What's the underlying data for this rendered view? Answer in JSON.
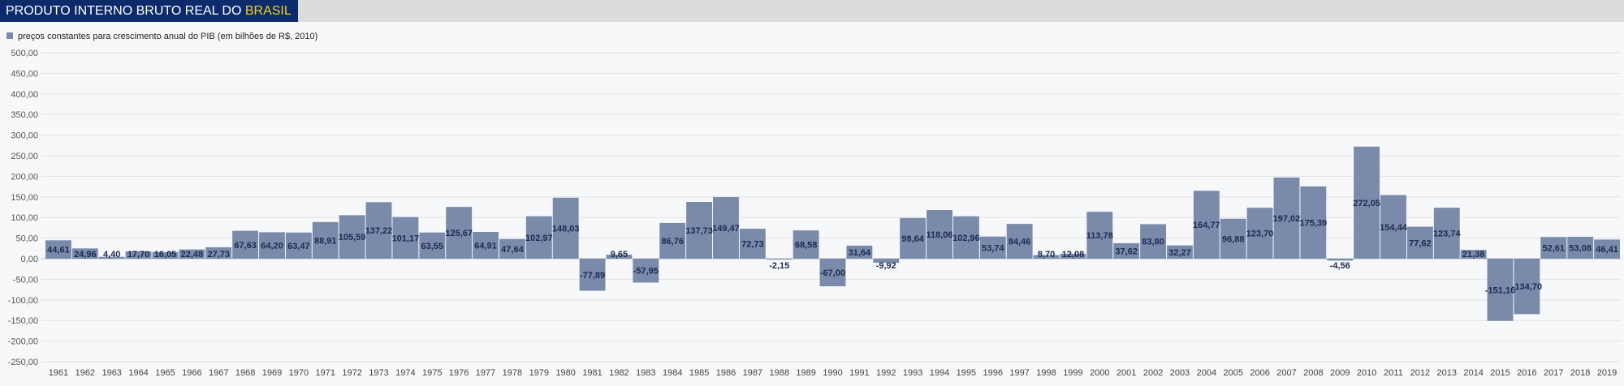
{
  "header": {
    "title_main": "PRODUTO INTERNO BRUTO REAL DO ",
    "title_highlight": "BRASIL"
  },
  "colors": {
    "header_bg": "#0d2b6b",
    "highlight": "#f2d21b",
    "bar": "#7a8aab"
  },
  "chart_data": {
    "type": "bar",
    "title": "PRODUTO INTERNO BRUTO REAL DO BRASIL",
    "legend_position": "top-left",
    "grid": true,
    "ylim": [
      -250,
      500
    ],
    "yticks": [
      "500,00",
      "450,00",
      "400,00",
      "350,00",
      "300,00",
      "250,00",
      "200,00",
      "150,00",
      "100,00",
      "50,00",
      "0,00",
      "-50,00",
      "-100,00",
      "-150,00",
      "-200,00",
      "-250,00"
    ],
    "categories": [
      "1961",
      "1962",
      "1963",
      "1964",
      "1965",
      "1966",
      "1967",
      "1968",
      "1969",
      "1970",
      "1971",
      "1972",
      "1973",
      "1974",
      "1975",
      "1976",
      "1977",
      "1978",
      "1979",
      "1980",
      "1981",
      "1982",
      "1983",
      "1984",
      "1985",
      "1986",
      "1987",
      "1988",
      "1989",
      "1990",
      "1991",
      "1992",
      "1993",
      "1994",
      "1995",
      "1996",
      "1997",
      "1998",
      "1999",
      "2000",
      "2001",
      "2002",
      "2003",
      "2004",
      "2005",
      "2006",
      "2007",
      "2008",
      "2009",
      "2010",
      "2011",
      "2012",
      "2013",
      "2014",
      "2015",
      "2016",
      "2017",
      "2018",
      "2019"
    ],
    "series": [
      {
        "name": "preços constantes para crescimento anual do PIB (em bilhões de R$, 2010)",
        "values": [
          44.61,
          24.96,
          4.4,
          17.7,
          16.05,
          22.48,
          27.73,
          67.63,
          64.2,
          63.47,
          88.91,
          105.59,
          137.22,
          101.17,
          63.55,
          125.67,
          64.91,
          47.64,
          102.97,
          148.03,
          -77.89,
          9.65,
          -57.95,
          86.76,
          137.73,
          149.47,
          72.73,
          -2.15,
          68.58,
          -67.0,
          31.64,
          -9.92,
          98.64,
          118.06,
          102.96,
          53.74,
          84.46,
          8.7,
          12.08,
          113.78,
          37.62,
          83.8,
          32.27,
          164.77,
          96.88,
          123.7,
          197.02,
          175.39,
          -4.56,
          272.05,
          154.44,
          77.62,
          123.74,
          21.38,
          -151.16,
          -134.7,
          52.61,
          53.08,
          46.41
        ],
        "labels": [
          "44,61",
          "24,96",
          "4,40",
          "17,70",
          "16,05",
          "22,48",
          "27,73",
          "67,63",
          "64,20",
          "63,47",
          "88,91",
          "105,59",
          "137,22",
          "101,17",
          "63,55",
          "125,67",
          "64,91",
          "47,64",
          "102,97",
          "148,03",
          "-77,89",
          "9,65",
          "-57,95",
          "86,76",
          "137,73",
          "149,47",
          "72,73",
          "-2,15",
          "68,58",
          "-67,00",
          "31,64",
          "-9,92",
          "98,64",
          "118,06",
          "102,96",
          "53,74",
          "84,46",
          "8,70",
          "12,08",
          "113,78",
          "37,62",
          "83,80",
          "32,27",
          "164,77",
          "96,88",
          "123,70",
          "197,02",
          "175,39",
          "-4,56",
          "272,05",
          "154,44",
          "77,62",
          "123,74",
          "21,38",
          "-151,16",
          "-134,70",
          "52,61",
          "53,08",
          "46,41"
        ]
      }
    ]
  }
}
